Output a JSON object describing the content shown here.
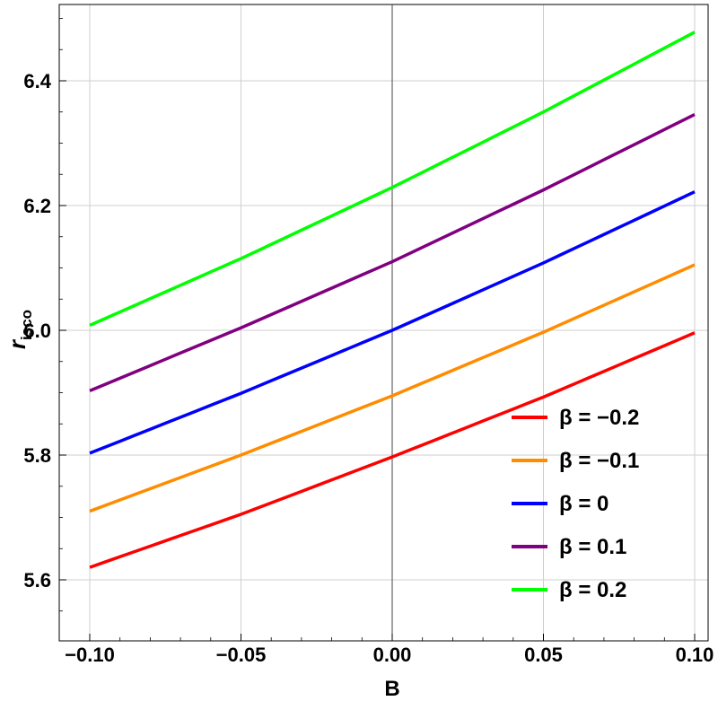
{
  "chart_data": {
    "type": "line",
    "xlabel": "B",
    "ylabel_main": "r",
    "ylabel_sub": "isco",
    "xlim": [
      -0.1,
      0.1
    ],
    "ylim": [
      5.5,
      6.5
    ],
    "x_ticks": [
      -0.1,
      -0.05,
      0.0,
      0.05,
      0.1
    ],
    "x_tick_labels": [
      "−0.10",
      "−0.05",
      "0.00",
      "0.05",
      "0.10"
    ],
    "y_ticks": [
      5.6,
      5.8,
      6.0,
      6.2,
      6.4
    ],
    "y_tick_labels": [
      "5.6",
      "5.8",
      "6.0",
      "6.2",
      "6.4"
    ],
    "grid": true,
    "legend_placement": "bottom-right",
    "x": [
      -0.1,
      -0.05,
      0.0,
      0.05,
      0.1
    ],
    "series": [
      {
        "name": "β = −0.2",
        "color": "#ff0000",
        "values": [
          5.62,
          5.705,
          5.797,
          5.893,
          5.996
        ]
      },
      {
        "name": "β = −0.1",
        "color": "#ff8c00",
        "values": [
          5.71,
          5.8,
          5.895,
          5.997,
          6.105
        ]
      },
      {
        "name": "β = 0",
        "color": "#0000ff",
        "values": [
          5.803,
          5.899,
          6.0,
          6.108,
          6.222
        ]
      },
      {
        "name": "β = 0.1",
        "color": "#800080",
        "values": [
          5.903,
          6.004,
          6.11,
          6.225,
          6.346
        ]
      },
      {
        "name": "β = 0.2",
        "color": "#00ff00",
        "values": [
          6.008,
          6.115,
          6.229,
          6.35,
          6.478
        ]
      }
    ]
  }
}
